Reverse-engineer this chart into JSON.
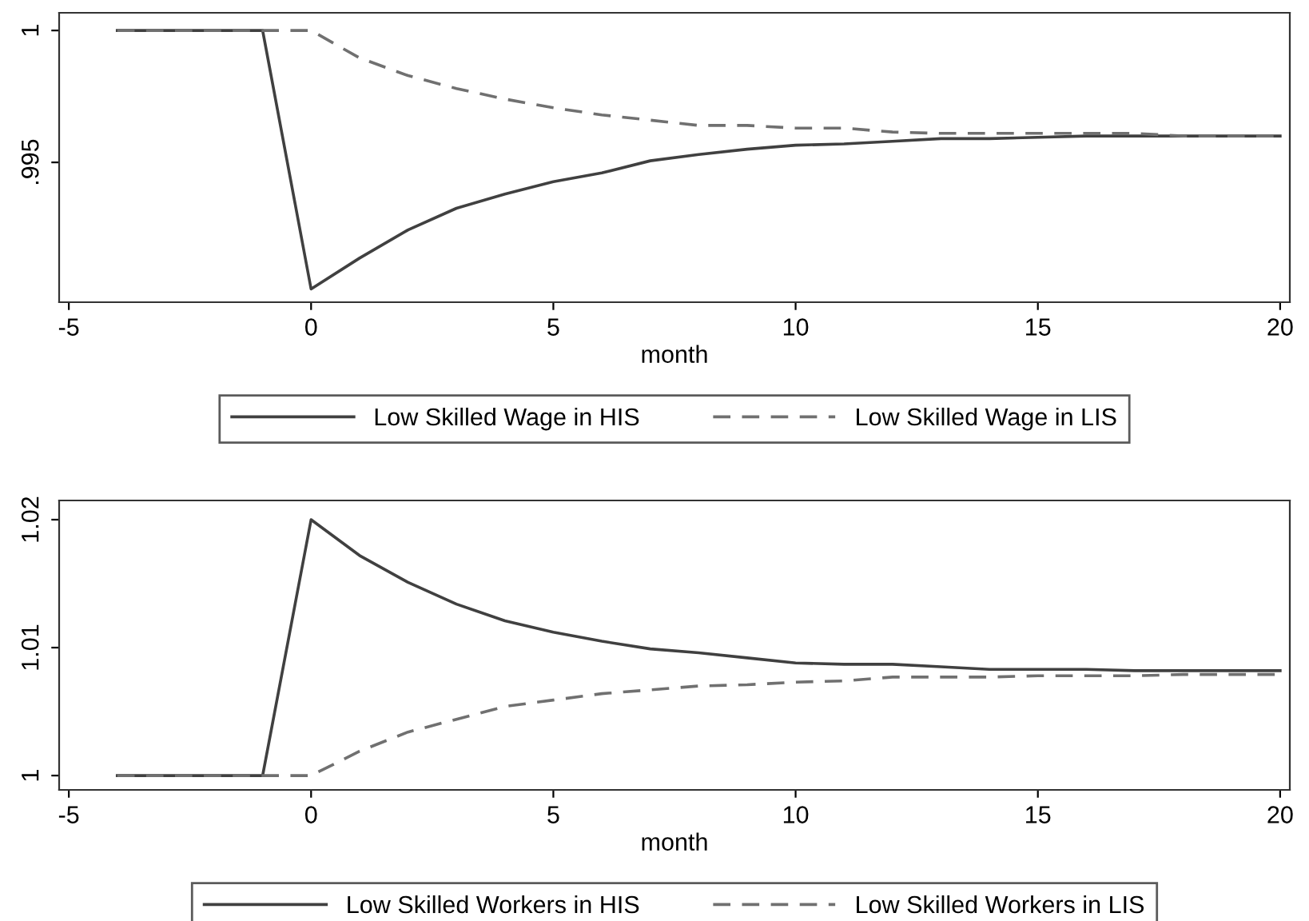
{
  "chart_data": [
    {
      "type": "line",
      "xlabel": "month",
      "x": [
        -4,
        -3,
        -2,
        -1,
        0,
        1,
        2,
        3,
        4,
        5,
        6,
        7,
        8,
        9,
        10,
        11,
        12,
        13,
        14,
        15,
        16,
        17,
        18,
        19,
        20
      ],
      "xlim": [
        -5.2,
        20.2
      ],
      "xticks": [
        -5,
        0,
        5,
        10,
        15,
        20
      ],
      "ylim": [
        0.9897,
        1.00067
      ],
      "yticks": [
        {
          "value": 0.995,
          "label": ".995"
        },
        1
      ],
      "grid": false,
      "legend": "bottom",
      "series": [
        {
          "name": "Low Skilled Wage in HIS",
          "color": "#404040",
          "line_style": "solid",
          "values": [
            1,
            1,
            1,
            1,
            0.9902,
            0.99137,
            0.99244,
            0.99326,
            0.9938,
            0.99427,
            0.9946,
            0.99506,
            0.9953,
            0.9955,
            0.99565,
            0.9957,
            0.9958,
            0.9959,
            0.9959,
            0.99595,
            0.996,
            0.996,
            0.996,
            0.996,
            0.996
          ]
        },
        {
          "name": "Low Skilled Wage in LIS",
          "color": "#707070",
          "line_style": "dashed",
          "values": [
            1,
            1,
            1,
            1,
            1,
            0.99896,
            0.99829,
            0.9978,
            0.9974,
            0.99707,
            0.9968,
            0.9966,
            0.9964,
            0.9964,
            0.9963,
            0.9963,
            0.99615,
            0.9961,
            0.9961,
            0.9961,
            0.9961,
            0.9961,
            0.996,
            0.996,
            0.996
          ]
        }
      ]
    },
    {
      "type": "line",
      "xlabel": "month",
      "x": [
        -4,
        -3,
        -2,
        -1,
        0,
        1,
        2,
        3,
        4,
        5,
        6,
        7,
        8,
        9,
        10,
        11,
        12,
        13,
        14,
        15,
        16,
        17,
        18,
        19,
        20
      ],
      "xlim": [
        -5.2,
        20.2
      ],
      "xticks": [
        -5,
        0,
        5,
        10,
        15,
        20
      ],
      "ylim": [
        0.99888,
        1.0215
      ],
      "yticks": [
        1,
        1.01,
        1.02
      ],
      "grid": false,
      "legend": "bottom",
      "series": [
        {
          "name": "Low Skilled Workers in HIS",
          "color": "#404040",
          "line_style": "solid",
          "values": [
            1,
            1,
            1,
            1,
            1.02,
            1.0172,
            1.0151,
            1.0134,
            1.0121,
            1.0112,
            1.0105,
            1.0099,
            1.0096,
            1.0092,
            1.0088,
            1.0087,
            1.0087,
            1.0085,
            1.0083,
            1.0083,
            1.0083,
            1.0082,
            1.0082,
            1.0082,
            1.0082
          ]
        },
        {
          "name": "Low Skilled Workers in LIS",
          "color": "#707070",
          "line_style": "dashed",
          "values": [
            1,
            1,
            1,
            1,
            1,
            1.0019,
            1.0034,
            1.0044,
            1.0054,
            1.0059,
            1.0064,
            1.0067,
            1.007,
            1.0071,
            1.0073,
            1.0074,
            1.0077,
            1.0077,
            1.0077,
            1.0078,
            1.0078,
            1.0078,
            1.0079,
            1.0079,
            1.0079
          ]
        }
      ]
    }
  ]
}
